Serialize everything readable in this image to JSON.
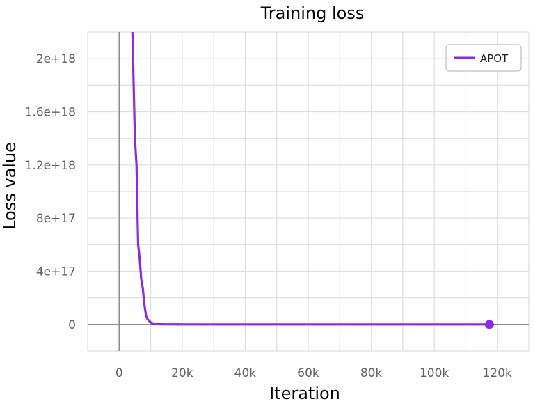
{
  "chart_data": {
    "type": "line",
    "title": "Training loss",
    "xlabel": "Iteration",
    "ylabel": "Loss value",
    "xlim": [
      -10000,
      130000
    ],
    "ylim": [
      -200000000000000000,
      2200000000000000000
    ],
    "x_ticks": [
      0,
      20000,
      40000,
      60000,
      80000,
      100000,
      120000
    ],
    "x_tick_labels": [
      "0",
      "20k",
      "40k",
      "60k",
      "80k",
      "100k",
      "120k"
    ],
    "y_ticks": [
      0,
      400000000000000000,
      800000000000000000,
      1200000000000000000,
      1600000000000000000,
      2000000000000000000
    ],
    "y_tick_labels": [
      "0",
      "4e+17",
      "8e+17",
      "1.2e+18",
      "1.6e+18",
      "2e+18"
    ],
    "grid": true,
    "legend_position": "top-right",
    "series": [
      {
        "name": "APOT",
        "color": "#8a2be2",
        "x": [
          4200,
          5000,
          5500,
          6000,
          6500,
          7000,
          7500,
          8000,
          8500,
          9000,
          10000,
          11000,
          12000,
          14000,
          20000,
          40000,
          60000,
          80000,
          100000,
          117500
        ],
        "y": [
          2200000000000000000,
          1400000000000000000,
          1200000000000000000,
          600000000000000000,
          500000000000000000,
          340000000000000000,
          270000000000000000,
          150000000000000000,
          70000000000000000,
          40000000000000000,
          15000000000000000,
          5000000000000000,
          2000000000000000,
          500000000000000,
          0,
          0,
          0,
          0,
          0,
          0
        ],
        "last_point": {
          "x": 117500,
          "y": 0
        }
      }
    ]
  }
}
